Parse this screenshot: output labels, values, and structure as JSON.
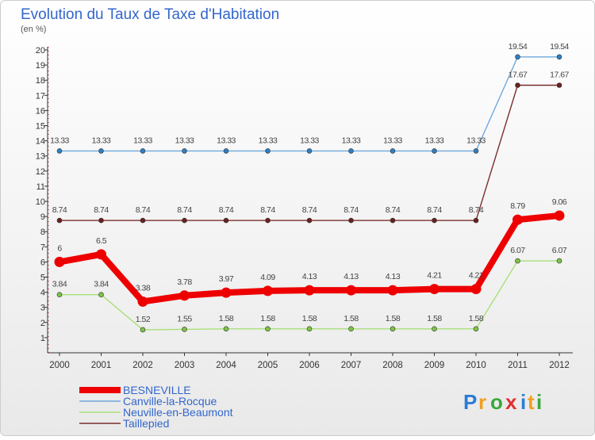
{
  "chart_data": {
    "type": "line",
    "title": "Evolution du Taux de Taxe d'Habitation",
    "subtitle": "(en %)",
    "xlabel": "",
    "ylabel": "",
    "ylim": [
      0,
      20
    ],
    "y_ticks": [
      "1",
      "2",
      "3",
      "4",
      "5",
      "6",
      "7",
      "8",
      "9",
      "10",
      "11",
      "12",
      "13",
      "14",
      "15",
      "16",
      "17",
      "18",
      "19",
      "20"
    ],
    "grid": false,
    "categories": [
      "2000",
      "2001",
      "2002",
      "2003",
      "2004",
      "2005",
      "2006",
      "2007",
      "2008",
      "2009",
      "2010",
      "2011",
      "2012"
    ],
    "series": [
      {
        "name": "Canville-la-Rocque",
        "color": "#6fa8dc",
        "marker_color": "#2d7fc4",
        "values": [
          13.33,
          13.33,
          13.33,
          13.33,
          13.33,
          13.33,
          13.33,
          13.33,
          13.33,
          13.33,
          13.33,
          19.54,
          19.54
        ],
        "labels": [
          "13.33",
          "13.33",
          "13.33",
          "13.33",
          "13.33",
          "13.33",
          "13.33",
          "13.33",
          "13.33",
          "13.33",
          "13.33",
          "19.54",
          "19.54"
        ]
      },
      {
        "name": "Taillepied",
        "color": "#7a2e2e",
        "marker_color": "#6b1f1f",
        "values": [
          8.74,
          8.74,
          8.74,
          8.74,
          8.74,
          8.74,
          8.74,
          8.74,
          8.74,
          8.74,
          8.74,
          17.67,
          17.67
        ],
        "labels": [
          "8.74",
          "8.74",
          "8.74",
          "8.74",
          "8.74",
          "8.74",
          "8.74",
          "8.74",
          "8.74",
          "8.74",
          "8.74",
          "17.67",
          "17.67"
        ]
      },
      {
        "name": "Neuville-en-Beaumont",
        "color": "#a8e07a",
        "marker_color": "#7cc442",
        "values": [
          3.84,
          3.84,
          1.52,
          1.55,
          1.58,
          1.58,
          1.58,
          1.58,
          1.58,
          1.58,
          1.58,
          6.07,
          6.07
        ],
        "labels": [
          "3.84",
          "3.84",
          "1.52",
          "1.55",
          "1.58",
          "1.58",
          "1.58",
          "1.58",
          "1.58",
          "1.58",
          "1.58",
          "6.07",
          "6.07"
        ]
      },
      {
        "name": "BESNEVILLE",
        "color": "#ee0000",
        "marker_color": "#ee0000",
        "values": [
          6,
          6.5,
          3.38,
          3.78,
          3.97,
          4.09,
          4.13,
          4.13,
          4.13,
          4.21,
          4.21,
          8.79,
          9.06
        ],
        "labels": [
          "6",
          "6.5",
          "3.38",
          "3.78",
          "3.97",
          "4.09",
          "4.13",
          "4.13",
          "4.13",
          "4.21",
          "4.21",
          "8.79",
          "9.06"
        ]
      }
    ],
    "legend": {
      "placement": "bottom-left",
      "entries": [
        "BESNEVILLE",
        "Canville-la-Rocque",
        "Neuville-en-Beaumont",
        "Taillepied"
      ],
      "colors": [
        "#ee0000",
        "#6fa8dc",
        "#a8e07a",
        "#7a2e2e"
      ]
    }
  },
  "brand": {
    "letters": [
      "P",
      "r",
      "o",
      "x",
      "i",
      "t",
      "i"
    ],
    "colors": [
      "#2a7bd6",
      "#f0a020",
      "#3aa83a",
      "#e03030",
      "#2a7bd6",
      "#f0a020",
      "#3aa83a"
    ]
  },
  "colors": {
    "title": "#3366cc",
    "axis": "#333333",
    "tick_text": "#333333",
    "label_text": "#444444",
    "frame": "#cccccc",
    "plot_bg_top": "#ffffff",
    "plot_bg_bottom": "#e9e9e9"
  }
}
